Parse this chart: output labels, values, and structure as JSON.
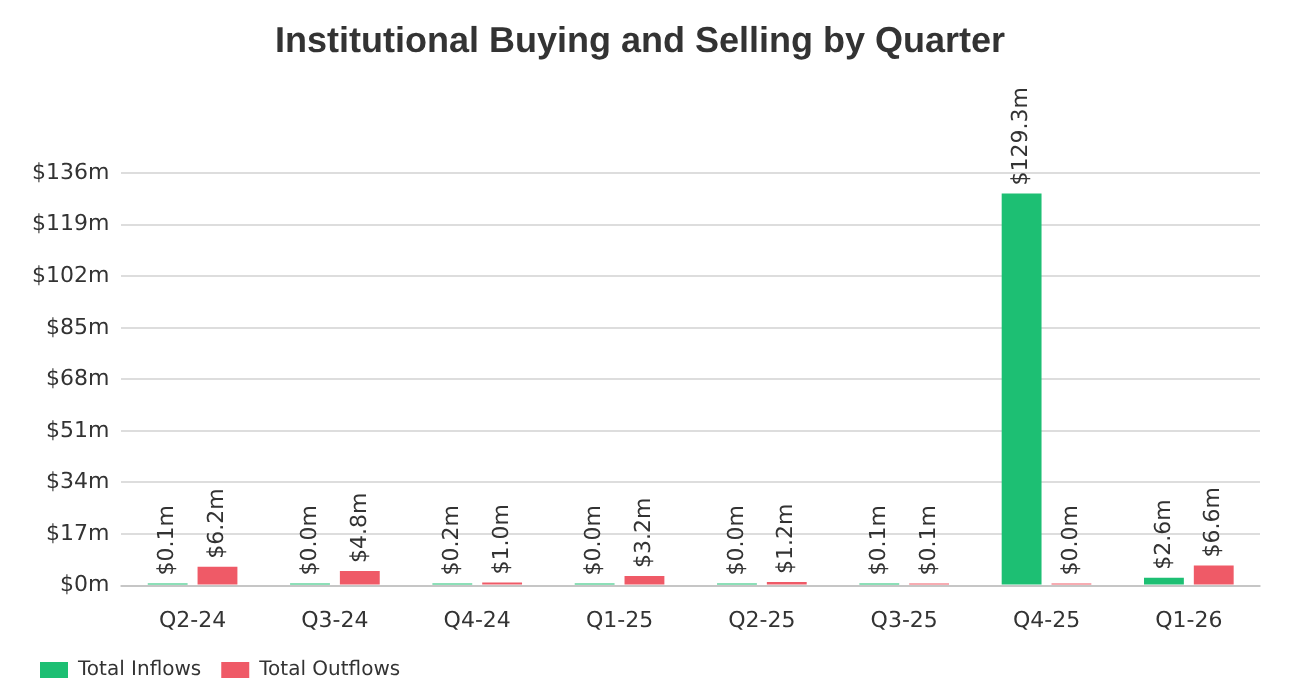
{
  "chart_data": {
    "type": "bar",
    "title": "Institutional Buying and Selling by Quarter",
    "categories": [
      "Q2-24",
      "Q3-24",
      "Q4-24",
      "Q1-25",
      "Q2-25",
      "Q3-25",
      "Q4-25",
      "Q1-26"
    ],
    "series": [
      {
        "name": "Total Inflows",
        "color": "#1dbf73",
        "values": [
          0.1,
          0.0,
          0.2,
          0.0,
          0.0,
          0.1,
          129.3,
          2.6
        ],
        "value_labels": [
          "$0.1m",
          "$0.0m",
          "$0.2m",
          "$0.0m",
          "$0.0m",
          "$0.1m",
          "$129.3m",
          "$2.6m"
        ]
      },
      {
        "name": "Total Outflows",
        "color": "#ef5a67",
        "values": [
          6.2,
          4.8,
          1.0,
          3.2,
          1.2,
          0.1,
          0.0,
          6.6
        ],
        "value_labels": [
          "$6.2m",
          "$4.8m",
          "$1.0m",
          "$3.2m",
          "$1.2m",
          "$0.1m",
          "$0.0m",
          "$6.6m"
        ]
      }
    ],
    "ylim": [
      0,
      136
    ],
    "yticks": [
      {
        "value": 0,
        "label": "$0m"
      },
      {
        "value": 17,
        "label": "$17m"
      },
      {
        "value": 34,
        "label": "$34m"
      },
      {
        "value": 51,
        "label": "$51m"
      },
      {
        "value": 68,
        "label": "$68m"
      },
      {
        "value": 85,
        "label": "$85m"
      },
      {
        "value": 102,
        "label": "$102m"
      },
      {
        "value": 119,
        "label": "$119m"
      },
      {
        "value": 136,
        "label": "$136m"
      }
    ],
    "grid": "y",
    "legend": "bottom left"
  }
}
